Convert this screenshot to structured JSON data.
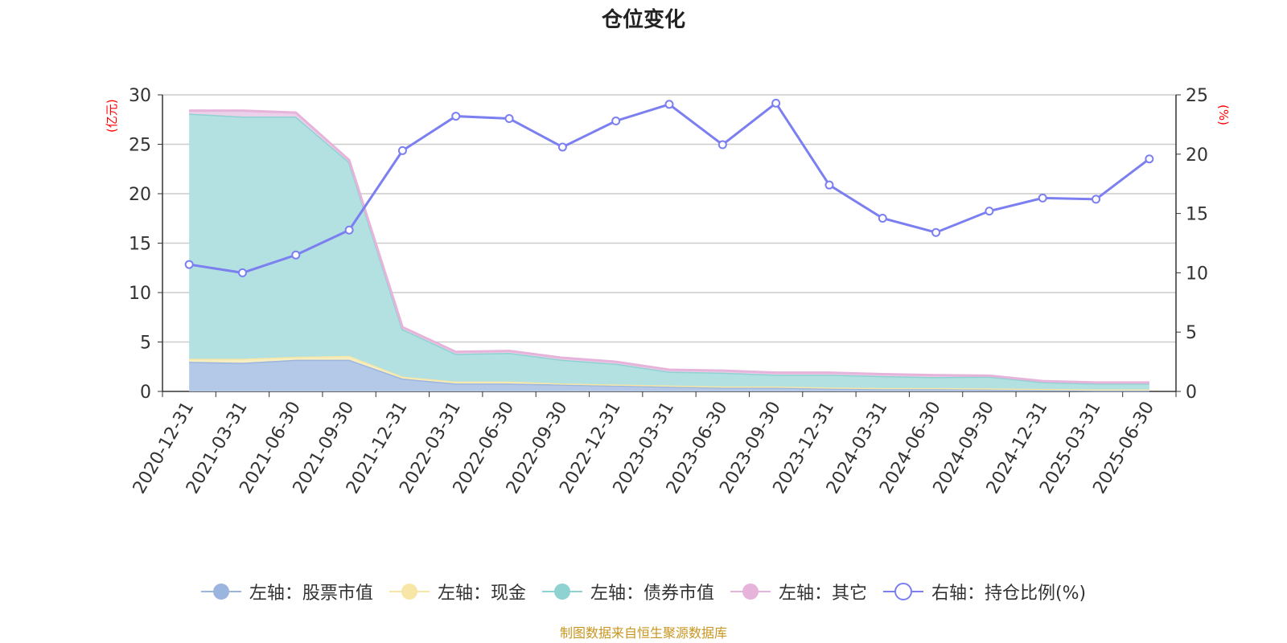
{
  "title": "仓位变化",
  "source_note": "制图数据来自恒生聚源数据库",
  "left_unit": "(亿元)",
  "right_unit": "(%)",
  "legend": [
    {
      "label": "左轴：股票市值",
      "color": "#9bb5df",
      "icon": "filled-circle-icon"
    },
    {
      "label": "左轴：现金",
      "color": "#f7e6a6",
      "icon": "filled-circle-icon"
    },
    {
      "label": "左轴：债券市值",
      "color": "#8ed2d2",
      "icon": "filled-circle-icon"
    },
    {
      "label": "左轴：其它",
      "color": "#e6b3db",
      "icon": "filled-circle-icon"
    },
    {
      "label": "右轴：持仓比例(%)",
      "color": "#7b7ff0",
      "icon": "hollow-circle-icon"
    }
  ],
  "chart_data": {
    "type": "area",
    "categories": [
      "2020-12-31",
      "2021-03-31",
      "2021-06-30",
      "2021-09-30",
      "2021-12-31",
      "2022-03-31",
      "2022-06-30",
      "2022-09-30",
      "2022-12-31",
      "2023-03-31",
      "2023-06-30",
      "2023-09-30",
      "2023-12-31",
      "2024-03-31",
      "2024-06-30",
      "2024-09-30",
      "2024-12-31",
      "2025-03-31",
      "2025-06-30"
    ],
    "left_axis": {
      "min": 0,
      "max": 30,
      "ticks": [
        0,
        5,
        10,
        15,
        20,
        25,
        30
      ]
    },
    "right_axis": {
      "min": 0,
      "max": 25,
      "ticks": [
        0,
        5,
        10,
        15,
        20,
        25
      ]
    },
    "stacked_series": [
      {
        "name": "左轴：股票市值",
        "color": "#b4c8e8",
        "line": "#9bb5df",
        "values": [
          3.0,
          2.9,
          3.2,
          3.2,
          1.3,
          0.8,
          0.8,
          0.7,
          0.6,
          0.5,
          0.4,
          0.4,
          0.3,
          0.25,
          0.25,
          0.2,
          0.15,
          0.1,
          0.1
        ]
      },
      {
        "name": "左轴：现金",
        "color": "#f7eec0",
        "line": "#f7e6a6",
        "values": [
          0.3,
          0.4,
          0.3,
          0.4,
          0.2,
          0.2,
          0.2,
          0.1,
          0.1,
          0.1,
          0.1,
          0.1,
          0.1,
          0.1,
          0.1,
          0.1,
          0.1,
          0.1,
          0.1
        ]
      },
      {
        "name": "左轴：债券市值",
        "color": "#b3e0e0",
        "line": "#8ed2d2",
        "values": [
          24.8,
          24.5,
          24.3,
          19.6,
          4.8,
          2.8,
          2.9,
          2.4,
          2.1,
          1.4,
          1.4,
          1.2,
          1.3,
          1.2,
          1.1,
          1.2,
          0.7,
          0.6,
          0.6
        ]
      },
      {
        "name": "左轴：其它",
        "color": "#ead0e8",
        "line": "#e6b3db",
        "values": [
          0.3,
          0.6,
          0.4,
          0.2,
          0.2,
          0.2,
          0.2,
          0.2,
          0.2,
          0.2,
          0.2,
          0.2,
          0.2,
          0.2,
          0.2,
          0.1,
          0.1,
          0.1,
          0.1
        ]
      }
    ],
    "line_series": {
      "name": "右轴：持仓比例(%)",
      "color": "#7b7ff0",
      "values": [
        10.7,
        10.0,
        11.5,
        13.6,
        20.3,
        23.2,
        23.0,
        20.6,
        22.8,
        24.2,
        20.8,
        24.3,
        17.4,
        14.6,
        13.4,
        15.2,
        16.3,
        16.2,
        19.6
      ]
    }
  }
}
